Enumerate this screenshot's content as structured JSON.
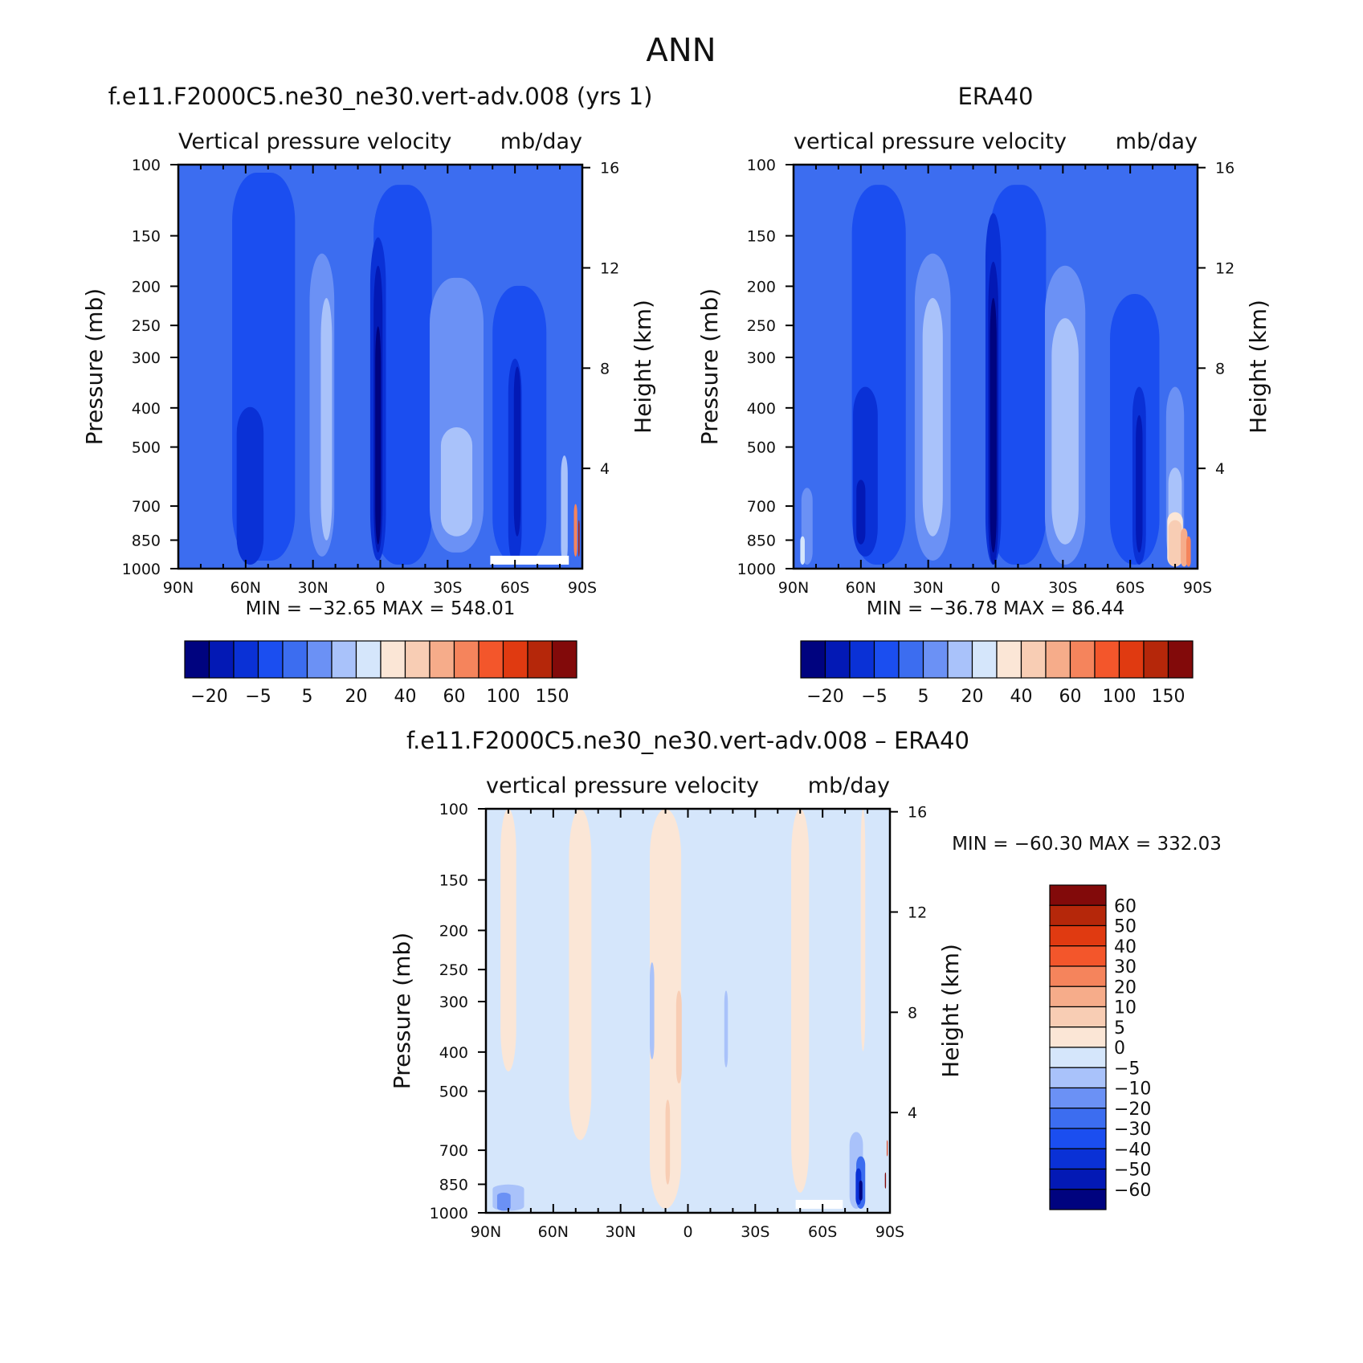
{
  "figure_title": "ANN",
  "colors": {
    "warm": [
      "#fbe6d6",
      "#f8cdb4",
      "#f6ac8a",
      "#f5845c",
      "#f3562b",
      "#e03a11",
      "#b5270a",
      "#820a0a"
    ],
    "cool": [
      "#00037f",
      "#0319b5",
      "#0a31d6",
      "#1b4ef0",
      "#3c6df0",
      "#6b91f5",
      "#a9c2fa",
      "#d5e6fb"
    ]
  },
  "chart_data": [
    {
      "type": "contour",
      "id": "model",
      "title": "f.e11.F2000C5.ne30_ne30.vert-adv.008 (yrs 1)",
      "subtitle_left": "Vertical pressure velocity",
      "subtitle_right": "mb/day",
      "ylabel": "Pressure (mb)",
      "ylabel_right": "Height (km)",
      "x_ticks": [
        "90N",
        "60N",
        "30N",
        "0",
        "30S",
        "60S",
        "90S"
      ],
      "y_ticks": [
        "100",
        "150",
        "200",
        "250",
        "300",
        "400",
        "500",
        "700",
        "850",
        "1000"
      ],
      "y_right_ticks": [
        "16",
        "12",
        "8",
        "4"
      ],
      "ylim": [
        100,
        1000
      ],
      "xlim": [
        90,
        -90
      ],
      "stats": "MIN = −32.65   MAX = 548.01",
      "colorbar_labels": [
        "−20",
        "−5",
        "5",
        "20",
        "40",
        "60",
        "100",
        "150"
      ],
      "colorbar_bins": 16
    },
    {
      "type": "contour",
      "id": "obs",
      "title": "ERA40",
      "subtitle_left": "vertical pressure velocity",
      "subtitle_right": "mb/day",
      "ylabel": "Pressure (mb)",
      "ylabel_right": "Height (km)",
      "x_ticks": [
        "90N",
        "60N",
        "30N",
        "0",
        "30S",
        "60S",
        "90S"
      ],
      "y_ticks": [
        "100",
        "150",
        "200",
        "250",
        "300",
        "400",
        "500",
        "700",
        "850",
        "1000"
      ],
      "y_right_ticks": [
        "16",
        "12",
        "8",
        "4"
      ],
      "ylim": [
        100,
        1000
      ],
      "xlim": [
        90,
        -90
      ],
      "stats": "MIN = −36.78   MAX =   86.44",
      "colorbar_labels": [
        "−20",
        "−5",
        "5",
        "20",
        "40",
        "60",
        "100",
        "150"
      ],
      "colorbar_bins": 16
    },
    {
      "type": "contour",
      "id": "diff",
      "title": "f.e11.F2000C5.ne30_ne30.vert-adv.008 – ERA40",
      "subtitle_left": "vertical pressure velocity",
      "subtitle_right": "mb/day",
      "ylabel": "Pressure (mb)",
      "ylabel_right": "Height (km)",
      "x_ticks": [
        "90N",
        "60N",
        "30N",
        "0",
        "30S",
        "60S",
        "90S"
      ],
      "y_ticks": [
        "100",
        "150",
        "200",
        "250",
        "300",
        "400",
        "500",
        "700",
        "850",
        "1000"
      ],
      "y_right_ticks": [
        "16",
        "12",
        "8",
        "4"
      ],
      "ylim": [
        100,
        1000
      ],
      "xlim": [
        90,
        -90
      ],
      "stats": "MIN = −60.30   MAX = 332.03",
      "colorbar_labels": [
        "60",
        "50",
        "40",
        "30",
        "20",
        "10",
        "5",
        "0",
        "−5",
        "−10",
        "−20",
        "−30",
        "−40",
        "−50",
        "−60"
      ],
      "colorbar_bins": 16
    }
  ]
}
